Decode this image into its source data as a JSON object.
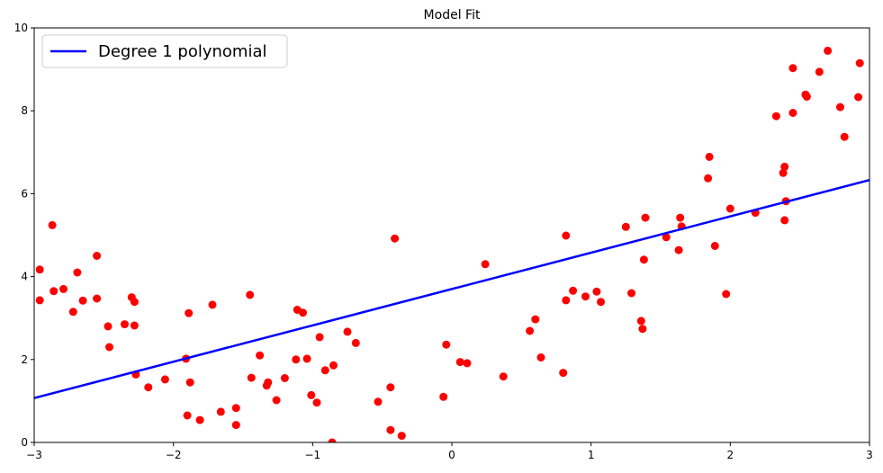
{
  "chart_data": {
    "type": "scatter",
    "title": "Model Fit",
    "xlabel": "",
    "ylabel": "",
    "xlim": [
      -3,
      3
    ],
    "ylim": [
      0,
      10
    ],
    "x_ticks": [
      -3,
      -2,
      -1,
      0,
      1,
      2,
      3
    ],
    "x_tick_labels": [
      "−3",
      "−2",
      "−1",
      "0",
      "1",
      "2",
      "3"
    ],
    "y_ticks": [
      0,
      2,
      4,
      6,
      8,
      10
    ],
    "y_tick_labels": [
      "0",
      "2",
      "4",
      "6",
      "8",
      "10"
    ],
    "grid": false,
    "legend_position": "top-left",
    "series": [
      {
        "name": "Degree 1 polynomial",
        "kind": "line",
        "color": "#0000ff",
        "x": [
          -3,
          3
        ],
        "y": [
          1.07,
          6.33
        ]
      },
      {
        "kind": "scatter",
        "color": "#ff0000",
        "points": [
          [
            -2.96,
            3.43
          ],
          [
            -2.96,
            4.17
          ],
          [
            -2.87,
            5.24
          ],
          [
            -2.86,
            3.65
          ],
          [
            -2.79,
            3.7
          ],
          [
            -2.72,
            3.15
          ],
          [
            -2.69,
            4.1
          ],
          [
            -2.65,
            3.42
          ],
          [
            -2.55,
            4.5
          ],
          [
            -2.55,
            3.47
          ],
          [
            -2.47,
            2.8
          ],
          [
            -2.46,
            2.3
          ],
          [
            -2.35,
            2.85
          ],
          [
            -2.3,
            3.5
          ],
          [
            -2.28,
            3.39
          ],
          [
            -2.28,
            2.82
          ],
          [
            -2.27,
            1.64
          ],
          [
            -2.18,
            1.33
          ],
          [
            -2.06,
            1.52
          ],
          [
            -1.91,
            2.02
          ],
          [
            -1.9,
            0.65
          ],
          [
            -1.89,
            3.12
          ],
          [
            -1.88,
            1.45
          ],
          [
            -1.81,
            0.54
          ],
          [
            -1.72,
            3.32
          ],
          [
            -1.66,
            0.74
          ],
          [
            -1.55,
            0.42
          ],
          [
            -1.55,
            0.83
          ],
          [
            -1.45,
            3.56
          ],
          [
            -1.44,
            1.56
          ],
          [
            -1.38,
            2.1
          ],
          [
            -1.33,
            1.37
          ],
          [
            -1.32,
            1.45
          ],
          [
            -1.26,
            1.02
          ],
          [
            -1.2,
            1.55
          ],
          [
            -1.12,
            2.0
          ],
          [
            -1.11,
            3.2
          ],
          [
            -1.07,
            3.13
          ],
          [
            -1.04,
            2.02
          ],
          [
            -1.01,
            1.14
          ],
          [
            -0.97,
            0.96
          ],
          [
            -0.95,
            2.54
          ],
          [
            -0.91,
            1.74
          ],
          [
            -0.86,
            0.0
          ],
          [
            -0.85,
            1.86
          ],
          [
            -0.75,
            2.67
          ],
          [
            -0.69,
            2.4
          ],
          [
            -0.53,
            0.98
          ],
          [
            -0.44,
            1.33
          ],
          [
            -0.44,
            0.3
          ],
          [
            -0.41,
            4.92
          ],
          [
            -0.36,
            0.16
          ],
          [
            -0.06,
            1.1
          ],
          [
            -0.04,
            2.36
          ],
          [
            0.06,
            1.94
          ],
          [
            0.11,
            1.91
          ],
          [
            0.24,
            4.3
          ],
          [
            0.37,
            1.59
          ],
          [
            0.56,
            2.69
          ],
          [
            0.6,
            2.97
          ],
          [
            0.64,
            2.05
          ],
          [
            0.8,
            1.68
          ],
          [
            0.82,
            3.43
          ],
          [
            0.82,
            4.99
          ],
          [
            0.87,
            3.66
          ],
          [
            0.96,
            3.52
          ],
          [
            1.04,
            3.64
          ],
          [
            1.07,
            3.39
          ],
          [
            1.25,
            5.2
          ],
          [
            1.29,
            3.6
          ],
          [
            1.36,
            2.93
          ],
          [
            1.37,
            2.74
          ],
          [
            1.38,
            4.41
          ],
          [
            1.39,
            5.42
          ],
          [
            1.54,
            4.95
          ],
          [
            1.63,
            4.64
          ],
          [
            1.64,
            5.42
          ],
          [
            1.65,
            5.21
          ],
          [
            1.84,
            6.37
          ],
          [
            1.85,
            6.89
          ],
          [
            1.89,
            4.74
          ],
          [
            1.97,
            3.58
          ],
          [
            2.0,
            5.64
          ],
          [
            2.18,
            5.54
          ],
          [
            2.33,
            7.87
          ],
          [
            2.38,
            6.5
          ],
          [
            2.39,
            6.65
          ],
          [
            2.39,
            5.36
          ],
          [
            2.4,
            5.82
          ],
          [
            2.45,
            9.03
          ],
          [
            2.45,
            7.95
          ],
          [
            2.54,
            8.39
          ],
          [
            2.55,
            8.34
          ],
          [
            2.64,
            8.94
          ],
          [
            2.7,
            9.45
          ],
          [
            2.79,
            8.09
          ],
          [
            2.82,
            7.37
          ],
          [
            2.92,
            8.33
          ],
          [
            2.93,
            9.15
          ]
        ]
      }
    ]
  }
}
